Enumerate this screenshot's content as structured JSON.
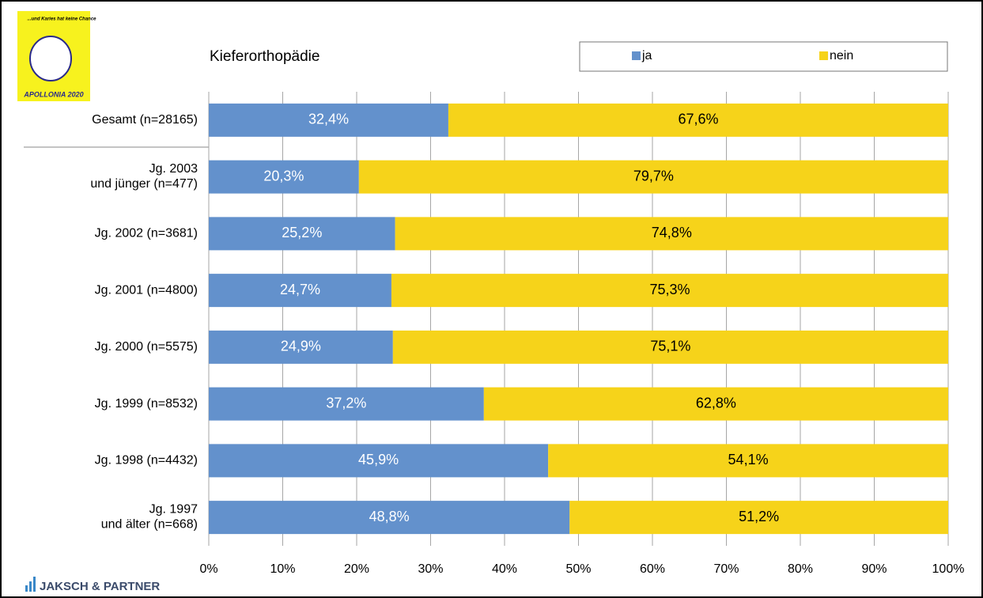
{
  "logo": {
    "slogan": "...und Karies hat keine Chance",
    "name": "APOLLONIA 2020"
  },
  "footer": {
    "brand": "JAKSCH & PARTNER"
  },
  "chart_data": {
    "type": "stacked-bar-horizontal",
    "title": "Kieferorthopädie",
    "categories": [
      "Gesamt (n=28165)",
      "Jg. 2003\nund jünger (n=477)",
      "Jg. 2002 (n=3681)",
      "Jg. 2001 (n=4800)",
      "Jg. 2000 (n=5575)",
      "Jg. 1999 (n=8532)",
      "Jg. 1998 (n=4432)",
      "Jg. 1997\nund älter (n=668)"
    ],
    "series": [
      {
        "name": "ja",
        "color": "#6391cc",
        "values": [
          32.4,
          20.3,
          25.2,
          24.7,
          24.9,
          37.2,
          45.9,
          48.8
        ],
        "value_labels": [
          "32,4%",
          "20,3%",
          "25,2%",
          "24,7%",
          "24,9%",
          "37,2%",
          "45,9%",
          "48,8%"
        ]
      },
      {
        "name": "nein",
        "color": "#f6d31a",
        "values": [
          67.6,
          79.7,
          74.8,
          75.3,
          75.1,
          62.8,
          54.1,
          51.2
        ],
        "value_labels": [
          "67,6%",
          "79,7%",
          "74,8%",
          "75,3%",
          "75,1%",
          "62,8%",
          "54,1%",
          "51,2%"
        ]
      }
    ],
    "xlim": [
      0,
      100
    ],
    "xticks": [
      {
        "value": 0,
        "label": "0%"
      },
      {
        "value": 10,
        "label": "10%"
      },
      {
        "value": 20,
        "label": "20%"
      },
      {
        "value": 30,
        "label": "30%"
      },
      {
        "value": 40,
        "label": "40%"
      },
      {
        "value": 50,
        "label": "50%"
      },
      {
        "value": 60,
        "label": "60%"
      },
      {
        "value": 70,
        "label": "70%"
      },
      {
        "value": 80,
        "label": "80%"
      },
      {
        "value": 90,
        "label": "90%"
      },
      {
        "value": 100,
        "label": "100%"
      }
    ],
    "grid": true,
    "legend": "top-right"
  }
}
